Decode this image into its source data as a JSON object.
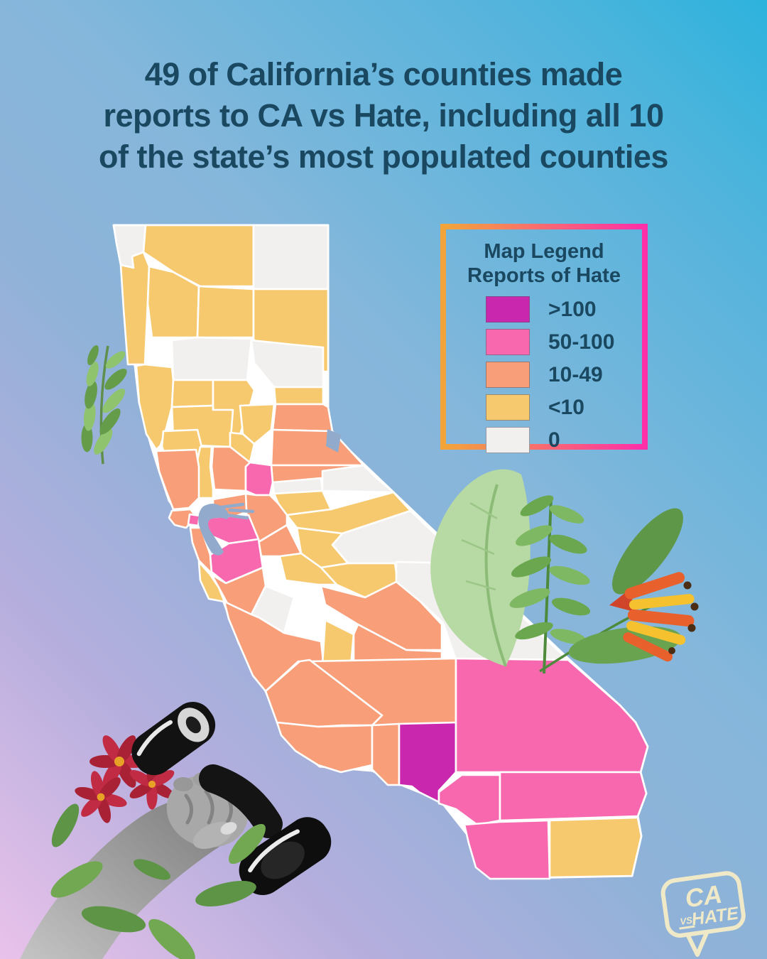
{
  "title": {
    "lines": [
      "49 of California’s counties made",
      "reports to CA vs Hate, including all 10",
      "of the state’s most populated counties"
    ]
  },
  "legend": {
    "title_line1": "Map Legend",
    "title_line2": "Reports of Hate",
    "items": [
      {
        "label": ">100",
        "bucket": "gt100"
      },
      {
        "label": "50-100",
        "bucket": "b50_100"
      },
      {
        "label": "10-49",
        "bucket": "b10_49"
      },
      {
        "label": "<10",
        "bucket": "lt10"
      },
      {
        "label": "0",
        "bucket": "zero"
      }
    ]
  },
  "logo": {
    "line1": "CA",
    "line2": "VS",
    "line3": "HATE"
  },
  "colors": {
    "title_text": "#1A4860",
    "legend_border_left": "#F2A43B",
    "legend_border_right": "#FF2FA8",
    "background_top_right": "#2DB3DD",
    "background_center": "#85B7DB",
    "background_bottom_left": "#E9C2EA",
    "water": "#92ABCC",
    "logo_cream": "#F0E9C8",
    "buckets": {
      "gt100": "#C927AE",
      "b50_100": "#F768AF",
      "b10_49": "#F89E78",
      "lt10": "#F7C96F",
      "zero": "#F1F0EE"
    }
  },
  "chart_data": {
    "type": "choropleth",
    "title": "Reports of Hate by California county",
    "legend_title": "Map Legend — Reports of Hate",
    "buckets": [
      ">100",
      "50-100",
      "10-49",
      "<10",
      "0"
    ],
    "regions": [
      {
        "id": "del_norte",
        "name": "Del Norte",
        "reports": "0",
        "bucket": "zero"
      },
      {
        "id": "siskiyou",
        "name": "Siskiyou",
        "reports": "<10",
        "bucket": "lt10"
      },
      {
        "id": "modoc",
        "name": "Modoc",
        "reports": "0",
        "bucket": "zero"
      },
      {
        "id": "humboldt",
        "name": "Humboldt",
        "reports": "<10",
        "bucket": "lt10"
      },
      {
        "id": "trinity",
        "name": "Trinity",
        "reports": "<10",
        "bucket": "lt10"
      },
      {
        "id": "shasta",
        "name": "Shasta",
        "reports": "<10",
        "bucket": "lt10"
      },
      {
        "id": "lassen",
        "name": "Lassen",
        "reports": "<10",
        "bucket": "lt10"
      },
      {
        "id": "tehama",
        "name": "Tehama",
        "reports": "0",
        "bucket": "zero"
      },
      {
        "id": "plumas",
        "name": "Plumas",
        "reports": "0",
        "bucket": "zero"
      },
      {
        "id": "mendocino",
        "name": "Mendocino",
        "reports": "<10",
        "bucket": "lt10"
      },
      {
        "id": "glenn",
        "name": "Glenn",
        "reports": "<10",
        "bucket": "lt10"
      },
      {
        "id": "butte",
        "name": "Butte",
        "reports": "<10",
        "bucket": "lt10"
      },
      {
        "id": "sierra",
        "name": "Sierra",
        "reports": "<10",
        "bucket": "lt10"
      },
      {
        "id": "colusa",
        "name": "Colusa",
        "reports": "<10",
        "bucket": "lt10"
      },
      {
        "id": "yuba",
        "name": "Yuba",
        "reports": "<10",
        "bucket": "lt10"
      },
      {
        "id": "sutter",
        "name": "Sutter",
        "reports": "<10",
        "bucket": "lt10"
      },
      {
        "id": "nevada",
        "name": "Nevada",
        "reports": "10-49",
        "bucket": "b10_49"
      },
      {
        "id": "placer",
        "name": "Placer",
        "reports": "10-49",
        "bucket": "b10_49"
      },
      {
        "id": "el_dorado",
        "name": "El Dorado",
        "reports": "10-49",
        "bucket": "b10_49"
      },
      {
        "id": "lake",
        "name": "Lake",
        "reports": "<10",
        "bucket": "lt10"
      },
      {
        "id": "yolo",
        "name": "Yolo",
        "reports": "10-49",
        "bucket": "b10_49"
      },
      {
        "id": "napa",
        "name": "Napa",
        "reports": "<10",
        "bucket": "lt10"
      },
      {
        "id": "sonoma",
        "name": "Sonoma",
        "reports": "10-49",
        "bucket": "b10_49"
      },
      {
        "id": "marin",
        "name": "Marin",
        "reports": "10-49",
        "bucket": "b10_49"
      },
      {
        "id": "solano",
        "name": "Solano",
        "reports": "10-49",
        "bucket": "b10_49"
      },
      {
        "id": "sacramento",
        "name": "Sacramento",
        "reports": "50-100",
        "bucket": "b50_100"
      },
      {
        "id": "amador",
        "name": "Amador",
        "reports": "0",
        "bucket": "zero"
      },
      {
        "id": "alpine",
        "name": "Alpine",
        "reports": "0",
        "bucket": "zero"
      },
      {
        "id": "calaveras",
        "name": "Calaveras",
        "reports": "<10",
        "bucket": "lt10"
      },
      {
        "id": "tuolumne",
        "name": "Tuolumne",
        "reports": "<10",
        "bucket": "lt10"
      },
      {
        "id": "mono",
        "name": "Mono",
        "reports": "0",
        "bucket": "zero"
      },
      {
        "id": "mariposa",
        "name": "Mariposa",
        "reports": "<10",
        "bucket": "lt10"
      },
      {
        "id": "madera",
        "name": "Madera",
        "reports": "<10",
        "bucket": "lt10"
      },
      {
        "id": "merced",
        "name": "Merced",
        "reports": "<10",
        "bucket": "lt10"
      },
      {
        "id": "stanislaus",
        "name": "Stanislaus",
        "reports": "10-49",
        "bucket": "b10_49"
      },
      {
        "id": "san_joaquin",
        "name": "San Joaquin",
        "reports": "10-49",
        "bucket": "b10_49"
      },
      {
        "id": "contra_costa",
        "name": "Contra Costa",
        "reports": "50-100",
        "bucket": "b50_100"
      },
      {
        "id": "san_francisco",
        "name": "San Francisco",
        "reports": "50-100",
        "bucket": "b50_100"
      },
      {
        "id": "san_mateo",
        "name": "San Mateo",
        "reports": "10-49",
        "bucket": "b10_49"
      },
      {
        "id": "alameda",
        "name": "Alameda",
        "reports": "50-100",
        "bucket": "b50_100"
      },
      {
        "id": "santa_clara",
        "name": "Santa Clara",
        "reports": "10-49",
        "bucket": "b10_49"
      },
      {
        "id": "santa_cruz",
        "name": "Santa Cruz",
        "reports": "<10",
        "bucket": "lt10"
      },
      {
        "id": "san_benito",
        "name": "San Benito",
        "reports": "0",
        "bucket": "zero"
      },
      {
        "id": "monterey",
        "name": "Monterey",
        "reports": "10-49",
        "bucket": "b10_49"
      },
      {
        "id": "inyo",
        "name": "Inyo",
        "reports": "0",
        "bucket": "zero"
      },
      {
        "id": "fresno",
        "name": "Fresno",
        "reports": "10-49",
        "bucket": "b10_49"
      },
      {
        "id": "kings",
        "name": "Kings",
        "reports": "<10",
        "bucket": "lt10"
      },
      {
        "id": "tulare",
        "name": "Tulare",
        "reports": "10-49",
        "bucket": "b10_49"
      },
      {
        "id": "kern",
        "name": "Kern",
        "reports": "10-49",
        "bucket": "b10_49"
      },
      {
        "id": "san_luis_obispo",
        "name": "San Luis Obispo",
        "reports": "10-49",
        "bucket": "b10_49"
      },
      {
        "id": "santa_barbara",
        "name": "Santa Barbara",
        "reports": "10-49",
        "bucket": "b10_49"
      },
      {
        "id": "ventura",
        "name": "Ventura",
        "reports": "10-49",
        "bucket": "b10_49"
      },
      {
        "id": "los_angeles",
        "name": "Los Angeles",
        "reports": ">100",
        "bucket": "gt100"
      },
      {
        "id": "san_bernardino",
        "name": "San Bernardino",
        "reports": "50-100",
        "bucket": "b50_100"
      },
      {
        "id": "orange",
        "name": "Orange",
        "reports": "50-100",
        "bucket": "b50_100"
      },
      {
        "id": "riverside",
        "name": "Riverside",
        "reports": "50-100",
        "bucket": "b50_100"
      },
      {
        "id": "san_diego",
        "name": "San Diego",
        "reports": "50-100",
        "bucket": "b50_100"
      },
      {
        "id": "imperial",
        "name": "Imperial",
        "reports": "<10",
        "bucket": "lt10"
      }
    ]
  }
}
